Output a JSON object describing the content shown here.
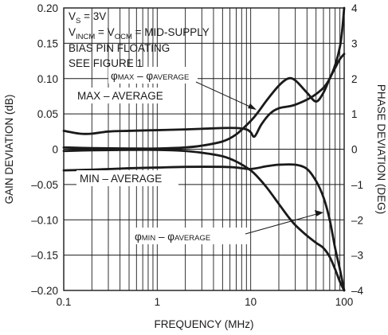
{
  "chart_data": {
    "type": "line",
    "x_scale": "log",
    "xlim": [
      0.1,
      100
    ],
    "ylim": [
      -0.2,
      0.2
    ],
    "y2lim": [
      -4,
      4
    ],
    "grid": true,
    "xlabel": "FREQUENCY (MHz)",
    "ylabel": "GAIN DEVIATION (dB)",
    "y2label": "PHASE DEVIATION (DEG)",
    "x_ticks": [
      {
        "value": 0.1,
        "label": "0.1"
      },
      {
        "value": 1,
        "label": "1"
      },
      {
        "value": 10,
        "label": "10"
      },
      {
        "value": 100,
        "label": "100"
      }
    ],
    "y_ticks": [
      {
        "value": 0.2,
        "label": "0.20"
      },
      {
        "value": 0.15,
        "label": "0.15"
      },
      {
        "value": 0.1,
        "label": "0.10"
      },
      {
        "value": 0.05,
        "label": "0.05"
      },
      {
        "value": 0,
        "label": "0"
      },
      {
        "value": -0.05,
        "label": "–0.05"
      },
      {
        "value": -0.1,
        "label": "–0.10"
      },
      {
        "value": -0.15,
        "label": "–0.15"
      },
      {
        "value": -0.2,
        "label": "–0.20"
      }
    ],
    "y2_ticks": [
      {
        "value": 4,
        "label": "4"
      },
      {
        "value": 3,
        "label": "3"
      },
      {
        "value": 2,
        "label": "2"
      },
      {
        "value": 1,
        "label": "1"
      },
      {
        "value": 0,
        "label": "0"
      },
      {
        "value": -1,
        "label": "–1"
      },
      {
        "value": -2,
        "label": "–2"
      },
      {
        "value": -3,
        "label": "–3"
      },
      {
        "value": -4,
        "label": "–4"
      }
    ],
    "conditions": [
      {
        "main": "V",
        "sub": "S",
        "rest": " = 3V"
      },
      {
        "main": "V",
        "sub": "INCM",
        "rest": " = V",
        "sub2": "OCM",
        "rest2": " = MID-SUPPLY"
      },
      {
        "main": "BIAS PIN FLOATING"
      },
      {
        "main": "SEE FIGURE 1"
      }
    ],
    "series": [
      {
        "name": "MAX – AVERAGE",
        "axis": "left",
        "x": [
          0.1,
          0.15,
          0.2,
          0.3,
          0.5,
          1,
          2,
          5,
          7,
          9,
          10,
          11,
          13,
          16,
          20,
          30,
          50,
          70,
          90,
          100
        ],
        "y": [
          0.026,
          0.022,
          0.022,
          0.025,
          0.026,
          0.027,
          0.028,
          0.03,
          0.03,
          0.028,
          0.024,
          0.018,
          0.035,
          0.05,
          0.058,
          0.063,
          0.078,
          0.1,
          0.145,
          0.2
        ]
      },
      {
        "name": "MIN – AVERAGE",
        "axis": "left",
        "x": [
          0.1,
          0.2,
          0.5,
          1,
          2,
          5,
          7,
          10,
          15,
          20,
          30,
          40,
          50,
          60,
          70,
          80,
          90,
          100
        ],
        "y": [
          -0.03,
          -0.029,
          -0.027,
          -0.026,
          -0.025,
          -0.025,
          -0.026,
          -0.028,
          -0.024,
          -0.022,
          -0.022,
          -0.028,
          -0.045,
          -0.068,
          -0.1,
          -0.14,
          -0.17,
          -0.2
        ]
      },
      {
        "name": "φMAX – φAVERAGE",
        "axis": "right",
        "x": [
          0.1,
          0.2,
          0.5,
          1,
          2,
          3,
          5,
          7,
          10,
          12,
          15,
          20,
          25,
          30,
          40,
          50,
          60,
          70,
          80,
          90,
          100
        ],
        "y": [
          0.05,
          0.03,
          0.02,
          0.02,
          0.05,
          0.1,
          0.22,
          0.42,
          0.8,
          1.05,
          1.4,
          1.8,
          2.0,
          1.95,
          1.6,
          1.35,
          1.6,
          2.0,
          2.3,
          2.55,
          2.7
        ]
      },
      {
        "name": "φMIN – φAVERAGE",
        "axis": "right",
        "x": [
          0.1,
          0.2,
          0.5,
          1,
          2,
          3,
          5,
          7,
          10,
          12,
          15,
          20,
          25,
          30,
          40,
          50,
          60,
          70,
          80,
          90,
          100
        ],
        "y": [
          -0.05,
          -0.03,
          -0.02,
          -0.02,
          -0.05,
          -0.1,
          -0.2,
          -0.35,
          -0.6,
          -0.8,
          -1.1,
          -1.55,
          -1.9,
          -2.15,
          -2.45,
          -2.65,
          -2.8,
          -3.05,
          -3.4,
          -3.75,
          -4.0
        ]
      }
    ],
    "annotations": [
      {
        "id": "max",
        "text": "MAX – AVERAGE"
      },
      {
        "id": "min",
        "text": "MIN – AVERAGE"
      },
      {
        "id": "phimax",
        "phi1": "φ",
        "s1": "MAX",
        "mid": " – ",
        "phi2": "φ",
        "s2": "AVERAGE"
      },
      {
        "id": "phimin",
        "phi1": "φ",
        "s1": "MIN",
        "mid": " – ",
        "phi2": "φ",
        "s2": "AVERAGE"
      }
    ]
  }
}
